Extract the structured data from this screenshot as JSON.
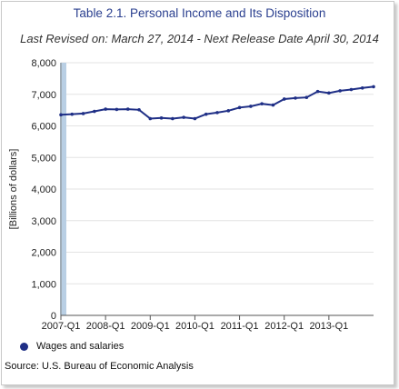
{
  "title": "Table 2.1. Personal Income and Its Disposition",
  "subtitle": "Last Revised on: March 27, 2014 - Next Release Date April 30, 2014",
  "source": "Source: U.S. Bureau of Economic Analysis",
  "colors": {
    "series": "#1f2f86",
    "highlight": "#b9cfe4",
    "grid": "#e3e3e3"
  },
  "chart_data": {
    "type": "line",
    "title": "Table 2.1. Personal Income and Its Disposition",
    "xlabel": "",
    "ylabel": "[Billions of dollars]",
    "ylim": [
      0,
      8000
    ],
    "yticks": [
      "0",
      "1,000",
      "2,000",
      "3,000",
      "4,000",
      "5,000",
      "6,000",
      "7,000",
      "8,000"
    ],
    "xticks": [
      "2007-Q1",
      "2008-Q1",
      "2009-Q1",
      "2010-Q1",
      "2011-Q1",
      "2012-Q1",
      "2013-Q1"
    ],
    "grid": true,
    "legend_position": "bottom-left",
    "series": [
      {
        "name": "Wages and salaries",
        "x": [
          "2007-Q1",
          "2007-Q2",
          "2007-Q3",
          "2007-Q4",
          "2008-Q1",
          "2008-Q2",
          "2008-Q3",
          "2008-Q4",
          "2009-Q1",
          "2009-Q2",
          "2009-Q3",
          "2009-Q4",
          "2010-Q1",
          "2010-Q2",
          "2010-Q3",
          "2010-Q4",
          "2011-Q1",
          "2011-Q2",
          "2011-Q3",
          "2011-Q4",
          "2012-Q1",
          "2012-Q2",
          "2012-Q3",
          "2012-Q4",
          "2013-Q1",
          "2013-Q2",
          "2013-Q3",
          "2013-Q4",
          "2014-Q1"
        ],
        "values": [
          6350,
          6370,
          6390,
          6460,
          6530,
          6520,
          6530,
          6510,
          6230,
          6250,
          6230,
          6270,
          6230,
          6370,
          6420,
          6480,
          6580,
          6620,
          6700,
          6660,
          6850,
          6880,
          6900,
          7090,
          7040,
          7110,
          7150,
          7200,
          7240
        ]
      }
    ]
  }
}
